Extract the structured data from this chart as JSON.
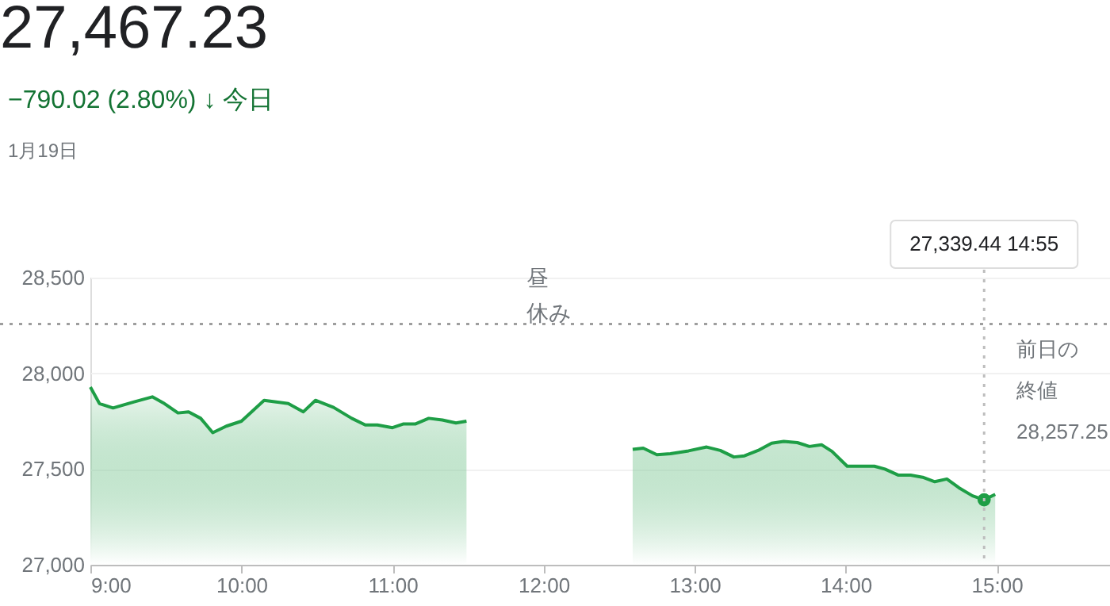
{
  "chart_data": {
    "type": "area",
    "title": "27,467.23",
    "subtitle": "−790.02 (2.80%) ↓ 今日",
    "annotations": [
      "1月19日",
      "昼休み",
      "27,339.44  14:55"
    ],
    "x": [
      9.0,
      9.06,
      9.15,
      9.29,
      9.41,
      9.49,
      9.58,
      9.65,
      9.73,
      9.81,
      9.9,
      10.0,
      10.08,
      10.15,
      10.31,
      10.41,
      10.49,
      10.61,
      10.73,
      10.82,
      10.9,
      11.0,
      11.07,
      11.15,
      11.24,
      11.33,
      11.42,
      11.49,
      12.0,
      12.59,
      12.66,
      12.75,
      12.84,
      12.96,
      13.08,
      13.17,
      13.26,
      13.33,
      13.42,
      13.51,
      13.59,
      13.68,
      13.76,
      13.84,
      13.91,
      14.01,
      14.1,
      14.19,
      14.26,
      14.35,
      14.43,
      14.51,
      14.59,
      14.67,
      14.75,
      14.84,
      14.9167,
      14.99
    ],
    "series": [
      {
        "color": "#1e9e46",
        "values": [
          27928,
          27842,
          27819,
          27851,
          27877,
          27842,
          27793,
          27799,
          27765,
          27690,
          27724,
          27750,
          27808,
          27859,
          27842,
          27799,
          27859,
          27822,
          27765,
          27730,
          27730,
          27716,
          27735,
          27735,
          27765,
          27756,
          27741,
          27750,
          null,
          27603,
          27609,
          27575,
          27580,
          27595,
          27615,
          27597,
          27563,
          27569,
          27597,
          27635,
          27644,
          27638,
          27618,
          27627,
          27592,
          27515,
          27515,
          27515,
          27500,
          27468,
          27468,
          27457,
          27434,
          27448,
          27402,
          27360,
          27339.44,
          27368
        ]
      },
      {
        "type": "scatter",
        "color": "#1e9e46",
        "marker": "circle",
        "x": [
          14.9167
        ],
        "values": [
          27339.44
        ]
      }
    ],
    "xlim": [
      9,
      15.75
    ],
    "xticks": [
      {
        "value": 9,
        "label": "9:00"
      },
      {
        "value": 10,
        "label": "10:00"
      },
      {
        "value": 11,
        "label": "11:00"
      },
      {
        "value": 12,
        "label": "12:00"
      },
      {
        "value": 13,
        "label": "13:00"
      },
      {
        "value": 14,
        "label": "14:00"
      },
      {
        "value": 15,
        "label": "15:00"
      }
    ],
    "ylim": [
      27000,
      28500
    ],
    "yticks": [
      {
        "value": 27000,
        "label": "27,000"
      },
      {
        "value": 27500,
        "label": "27,500"
      },
      {
        "value": 28000,
        "label": "28,000"
      },
      {
        "value": 28500,
        "label": "28,500"
      }
    ],
    "ref_lines": [
      {
        "axis": "y",
        "value": 28257.25,
        "label": "前日の終値 28,257.25",
        "color": "#9e9e9e",
        "line_style": "dotted"
      },
      {
        "axis": "x",
        "value": 14.9167,
        "color": "#bdbdbd",
        "line_style": "dotted"
      }
    ],
    "grid": "y",
    "marker": "none",
    "line_style": "solid"
  }
}
